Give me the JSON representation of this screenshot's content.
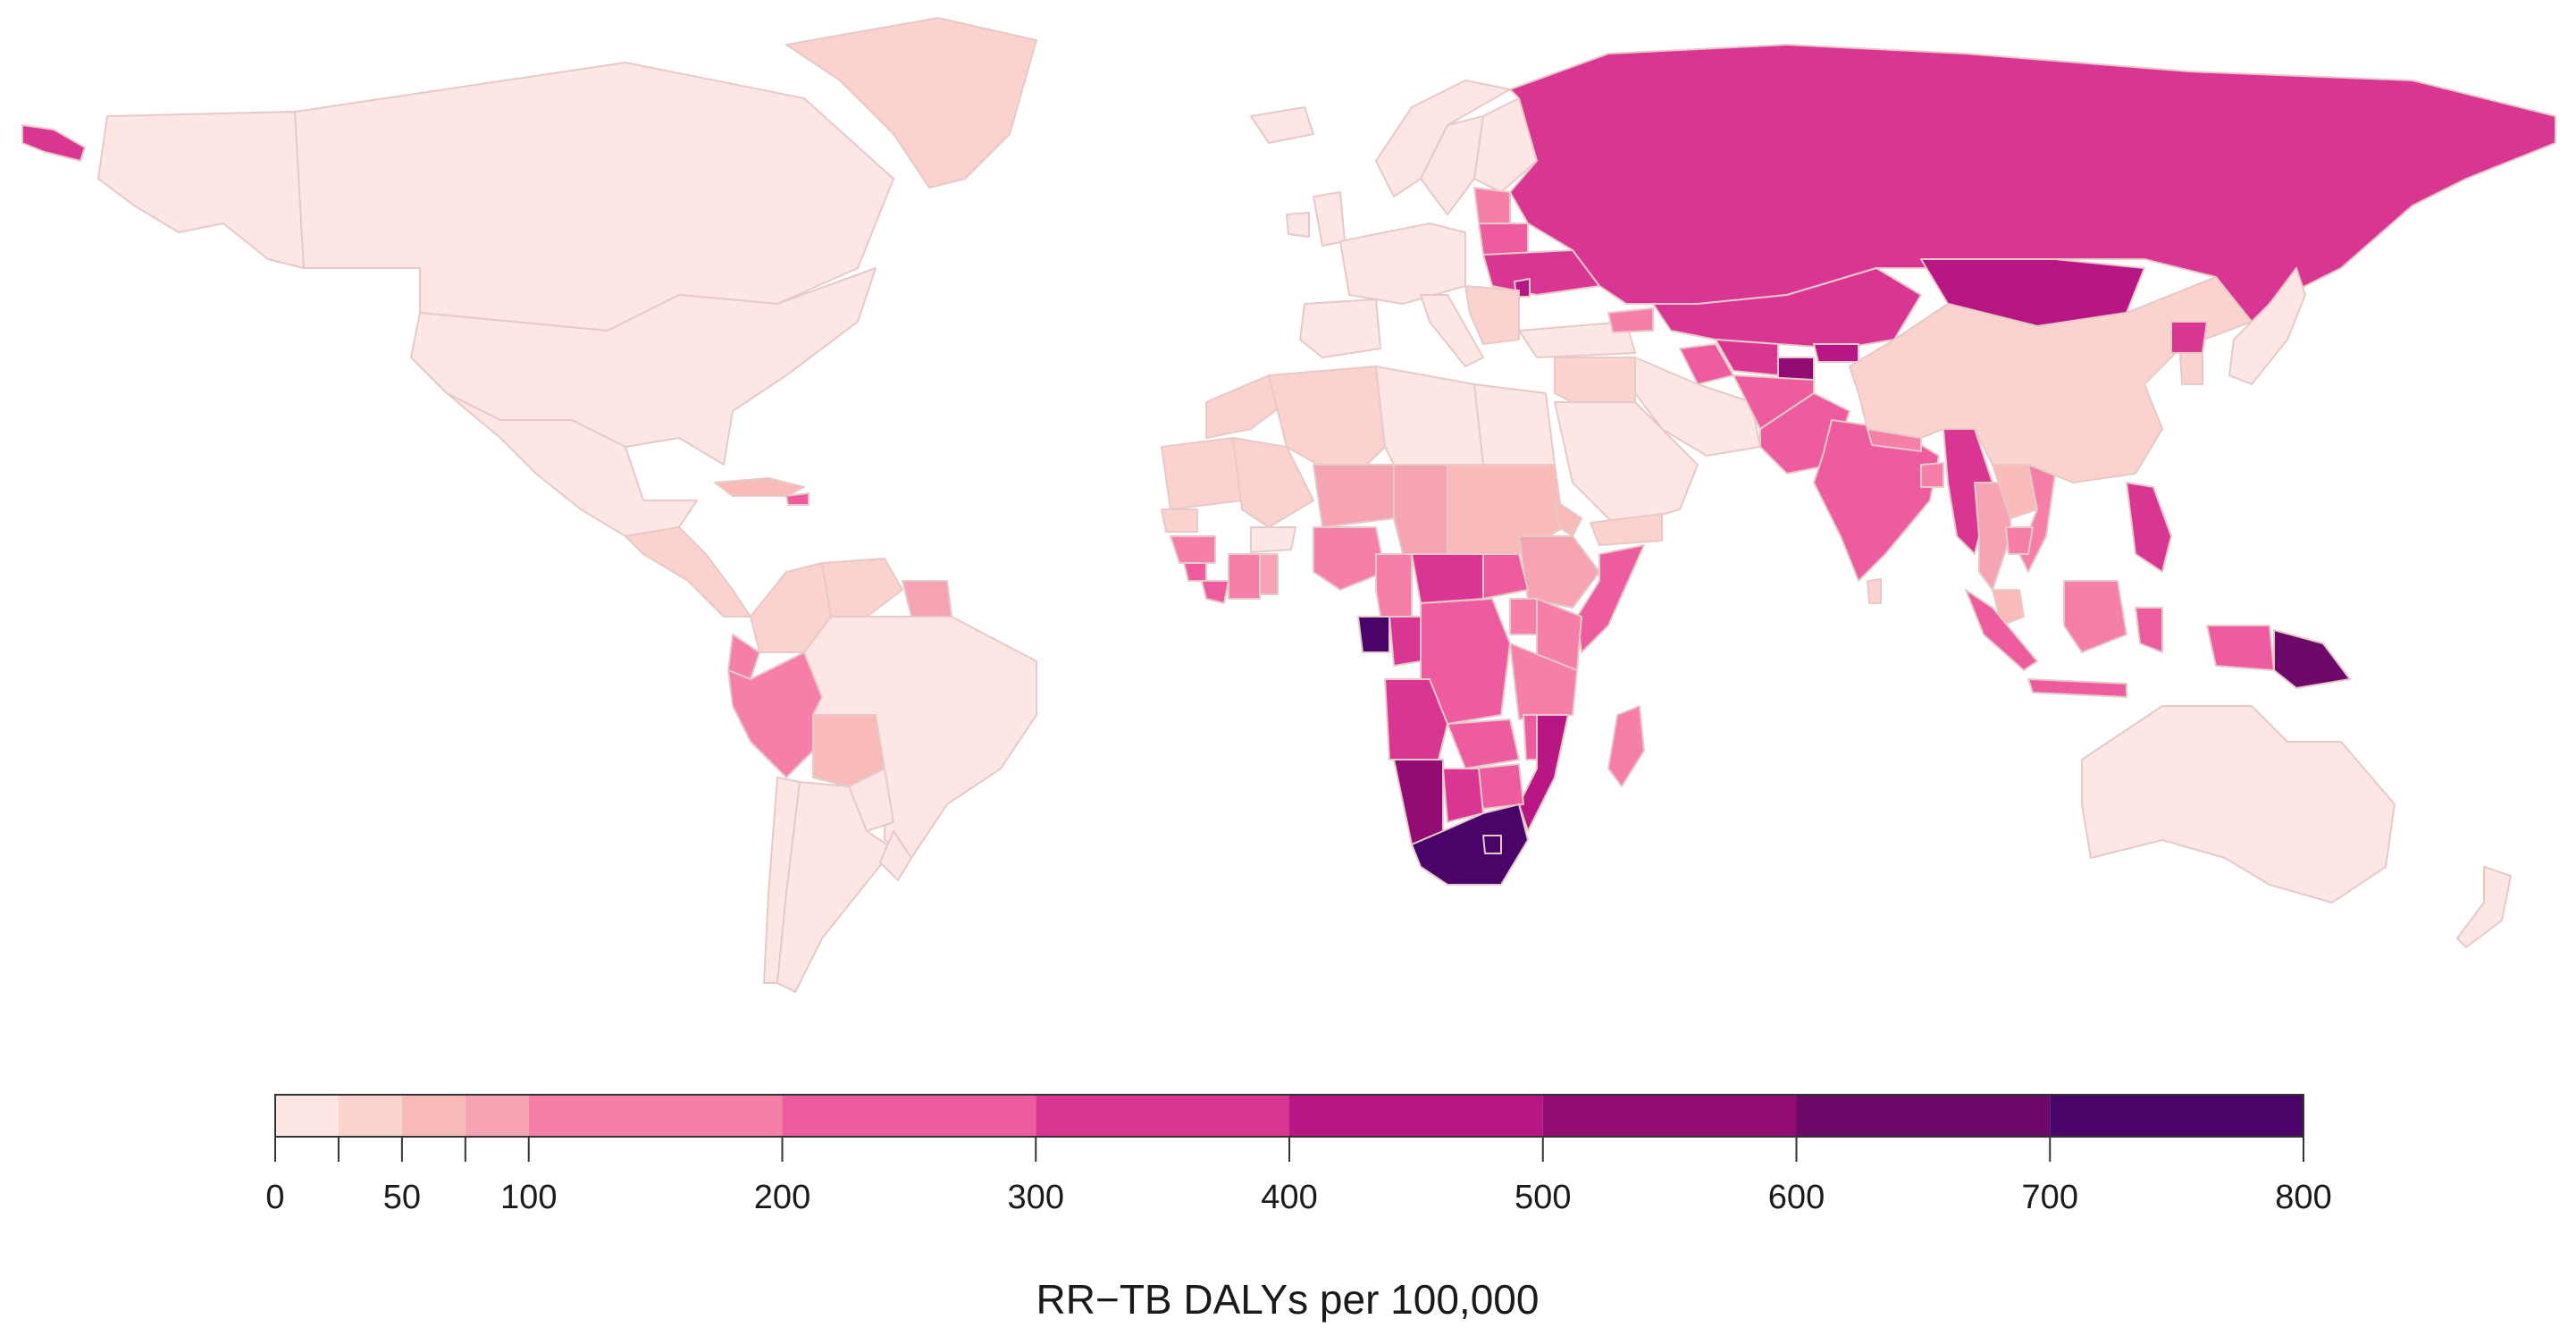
{
  "map": {
    "type": "choropleth",
    "regions": [
      {
        "id": "alaska",
        "value": 10
      },
      {
        "id": "aleutian",
        "value": 340
      },
      {
        "id": "canada",
        "value": 10
      },
      {
        "id": "greenland",
        "value": 30
      },
      {
        "id": "usa",
        "value": 10
      },
      {
        "id": "mexico",
        "value": 20
      },
      {
        "id": "central-america",
        "value": 40
      },
      {
        "id": "caribbean",
        "value": 60
      },
      {
        "id": "haiti",
        "value": 200
      },
      {
        "id": "colombia",
        "value": 40
      },
      {
        "id": "venezuela",
        "value": 40
      },
      {
        "id": "guyana",
        "value": 80
      },
      {
        "id": "ecuador",
        "value": 120
      },
      {
        "id": "peru",
        "value": 150
      },
      {
        "id": "bolivia",
        "value": 70
      },
      {
        "id": "brazil",
        "value": 20
      },
      {
        "id": "paraguay",
        "value": 20
      },
      {
        "id": "chile",
        "value": 10
      },
      {
        "id": "argentina",
        "value": 10
      },
      {
        "id": "uruguay",
        "value": 10
      },
      {
        "id": "iceland",
        "value": 5
      },
      {
        "id": "norway",
        "value": 5
      },
      {
        "id": "sweden",
        "value": 5
      },
      {
        "id": "finland",
        "value": 10
      },
      {
        "id": "uk",
        "value": 5
      },
      {
        "id": "ireland",
        "value": 5
      },
      {
        "id": "western-europe",
        "value": 5
      },
      {
        "id": "iberia",
        "value": 5
      },
      {
        "id": "italy",
        "value": 5
      },
      {
        "id": "baltics",
        "value": 120
      },
      {
        "id": "belarus",
        "value": 250
      },
      {
        "id": "ukraine",
        "value": 350
      },
      {
        "id": "moldova",
        "value": 450
      },
      {
        "id": "balkans",
        "value": 30
      },
      {
        "id": "turkey",
        "value": 20
      },
      {
        "id": "russia",
        "value": 350
      },
      {
        "id": "kazakhstan",
        "value": 380
      },
      {
        "id": "mongolia",
        "value": 450
      },
      {
        "id": "uzbekistan",
        "value": 300
      },
      {
        "id": "turkmenistan",
        "value": 200
      },
      {
        "id": "kyrgyzstan",
        "value": 450
      },
      {
        "id": "tajikistan",
        "value": 550
      },
      {
        "id": "caucasus",
        "value": 150
      },
      {
        "id": "iran",
        "value": 20
      },
      {
        "id": "iraq-syria",
        "value": 30
      },
      {
        "id": "arabia",
        "value": 20
      },
      {
        "id": "yemen",
        "value": 40
      },
      {
        "id": "afghanistan",
        "value": 250
      },
      {
        "id": "pakistan",
        "value": 260
      },
      {
        "id": "india",
        "value": 220
      },
      {
        "id": "nepal",
        "value": 150
      },
      {
        "id": "bangladesh",
        "value": 180
      },
      {
        "id": "sri-lanka",
        "value": 30
      },
      {
        "id": "myanmar",
        "value": 350
      },
      {
        "id": "thailand",
        "value": 90
      },
      {
        "id": "laos",
        "value": 60
      },
      {
        "id": "vietnam",
        "value": 180
      },
      {
        "id": "cambodia",
        "value": 100
      },
      {
        "id": "malaysia",
        "value": 60
      },
      {
        "id": "china",
        "value": 30
      },
      {
        "id": "north-korea",
        "value": 380
      },
      {
        "id": "south-korea",
        "value": 30
      },
      {
        "id": "japan",
        "value": 10
      },
      {
        "id": "philippines",
        "value": 350
      },
      {
        "id": "indonesia-sumatra",
        "value": 250
      },
      {
        "id": "indonesia-java",
        "value": 250
      },
      {
        "id": "borneo",
        "value": 180
      },
      {
        "id": "sulawesi",
        "value": 250
      },
      {
        "id": "papua-new-guinea",
        "value": 620
      },
      {
        "id": "west-papua",
        "value": 250
      },
      {
        "id": "australia",
        "value": 10
      },
      {
        "id": "new-zealand",
        "value": 10
      },
      {
        "id": "morocco",
        "value": 30
      },
      {
        "id": "algeria",
        "value": 30
      },
      {
        "id": "libya",
        "value": 20
      },
      {
        "id": "egypt",
        "value": 10
      },
      {
        "id": "mauritania",
        "value": 40
      },
      {
        "id": "mali",
        "value": 40
      },
      {
        "id": "niger",
        "value": 80
      },
      {
        "id": "chad",
        "value": 80
      },
      {
        "id": "sudan",
        "value": 60
      },
      {
        "id": "south-sudan",
        "value": 200
      },
      {
        "id": "ethiopia",
        "value": 90
      },
      {
        "id": "somalia",
        "value": 240
      },
      {
        "id": "eritrea",
        "value": 60
      },
      {
        "id": "senegal",
        "value": 30
      },
      {
        "id": "guinea",
        "value": 150
      },
      {
        "id": "sierra-leone",
        "value": 220
      },
      {
        "id": "liberia",
        "value": 200
      },
      {
        "id": "ivory-coast",
        "value": 150
      },
      {
        "id": "ghana",
        "value": 80
      },
      {
        "id": "burkina-faso",
        "value": 20
      },
      {
        "id": "nigeria",
        "value": 170
      },
      {
        "id": "cameroon",
        "value": 180
      },
      {
        "id": "car",
        "value": 320
      },
      {
        "id": "gabon",
        "value": 750
      },
      {
        "id": "congo",
        "value": 330
      },
      {
        "id": "drc",
        "value": 230
      },
      {
        "id": "uganda",
        "value": 160
      },
      {
        "id": "kenya",
        "value": 130
      },
      {
        "id": "tanzania",
        "value": 130
      },
      {
        "id": "angola",
        "value": 310
      },
      {
        "id": "zambia",
        "value": 220
      },
      {
        "id": "malawi",
        "value": 250
      },
      {
        "id": "mozambique",
        "value": 420
      },
      {
        "id": "zimbabwe",
        "value": 200
      },
      {
        "id": "namibia",
        "value": 540
      },
      {
        "id": "botswana",
        "value": 380
      },
      {
        "id": "south-africa",
        "value": 760
      },
      {
        "id": "lesotho",
        "value": 720
      },
      {
        "id": "madagascar",
        "value": 120
      }
    ]
  },
  "chart_data": {
    "type": "choropleth",
    "title": "",
    "legend_title": "RR−TB DALYs per 100,000",
    "breaks": [
      0,
      25,
      50,
      75,
      100,
      200,
      300,
      400,
      500,
      600,
      700,
      800
    ],
    "colors": [
      "#fde6e3",
      "#fbd2cd",
      "#f8bbb8",
      "#f6a4b3",
      "#f67faa",
      "#ec5c9e",
      "#d93593",
      "#b81684",
      "#930c73",
      "#6d0a69",
      "#4a0469"
    ],
    "tick_values": [
      0,
      50,
      100,
      200,
      300,
      400,
      500,
      600,
      700,
      800
    ],
    "tick_labels": [
      "0",
      "50",
      "100",
      "200",
      "300",
      "400",
      "500",
      "600",
      "700",
      "800"
    ],
    "minor_ticks": [
      25,
      75
    ],
    "range": [
      0,
      800
    ]
  }
}
